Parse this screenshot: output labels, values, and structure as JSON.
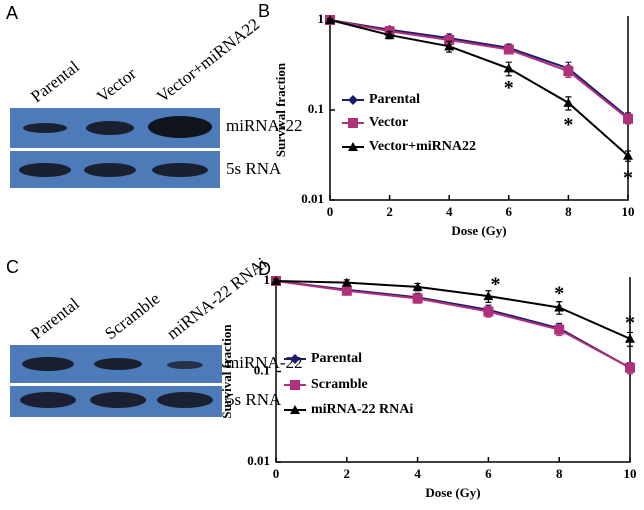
{
  "panels": {
    "A": {
      "letter": "A",
      "lanes": [
        "Parental",
        "Vector",
        "Vector+miRNA22"
      ],
      "bands": [
        "miRNA-22",
        "5s RNA"
      ]
    },
    "C": {
      "letter": "C",
      "lanes": [
        "Parental",
        "Scramble",
        "miRNA-22 RNAi"
      ],
      "bands": [
        "miRNA-22",
        "5s RNA"
      ]
    }
  },
  "chart_data": [
    {
      "type": "line",
      "panel": "B",
      "x_label": "Dose (Gy)",
      "y_label": "Survival fraction",
      "yscale": "log",
      "x": [
        0,
        2,
        4,
        6,
        8,
        10
      ],
      "xlim": [
        0,
        10
      ],
      "xticks": [
        0,
        2,
        4,
        6,
        8,
        10
      ],
      "ylim": [
        0.01,
        1
      ],
      "yticks": [
        1,
        0.1,
        0.01
      ],
      "series": [
        {
          "name": "Parental",
          "color": "#1c1c6e",
          "marker": "diamond",
          "values": [
            1,
            0.78,
            0.63,
            0.49,
            0.29,
            0.083
          ],
          "errors": [
            0.03,
            0.06,
            0.07,
            0.05,
            0.05,
            0.01
          ]
        },
        {
          "name": "Vector",
          "color": "#b0307a",
          "marker": "square",
          "values": [
            1,
            0.75,
            0.6,
            0.47,
            0.27,
            0.08
          ],
          "errors": [
            0.03,
            0.05,
            0.06,
            0.05,
            0.04,
            0.01
          ]
        },
        {
          "name": "Vector+miRNA22",
          "color": "#000000",
          "marker": "triangle",
          "values": [
            1,
            0.68,
            0.51,
            0.29,
            0.12,
            0.031
          ],
          "errors": [
            0.03,
            0.06,
            0.07,
            0.05,
            0.02,
            0.004
          ]
        }
      ],
      "annotations": [
        {
          "text": "*",
          "x": 6,
          "y": 0.17
        },
        {
          "text": "*",
          "x": 8,
          "y": 0.066
        },
        {
          "text": "*",
          "x": 10,
          "y": 0.017
        }
      ]
    },
    {
      "type": "line",
      "panel": "D",
      "x_label": "Dose (Gy)",
      "y_label": "Survival fraction",
      "yscale": "log",
      "x": [
        0,
        2,
        4,
        6,
        8,
        10
      ],
      "xlim": [
        0,
        10
      ],
      "xticks": [
        0,
        2,
        4,
        6,
        8,
        10
      ],
      "ylim": [
        0.01,
        1
      ],
      "yticks": [
        1,
        0.1,
        0.01
      ],
      "series": [
        {
          "name": "Parental",
          "color": "#1c1c6e",
          "marker": "diamond",
          "values": [
            1,
            0.8,
            0.66,
            0.48,
            0.3,
            0.11
          ],
          "errors": [
            0.03,
            0.06,
            0.07,
            0.06,
            0.04,
            0.015
          ]
        },
        {
          "name": "Scramble",
          "color": "#b0307a",
          "marker": "square",
          "values": [
            1,
            0.78,
            0.64,
            0.46,
            0.29,
            0.11
          ],
          "errors": [
            0.03,
            0.06,
            0.07,
            0.06,
            0.04,
            0.015
          ]
        },
        {
          "name": "miRNA-22 RNAi",
          "color": "#000000",
          "marker": "triangle",
          "values": [
            1,
            0.96,
            0.86,
            0.68,
            0.51,
            0.23
          ],
          "errors": [
            0.05,
            0.07,
            0.08,
            0.1,
            0.08,
            0.04
          ]
        }
      ],
      "annotations": [
        {
          "text": "*",
          "x": 6.2,
          "y": 0.88
        },
        {
          "text": "*",
          "x": 8,
          "y": 0.7
        },
        {
          "text": "*",
          "x": 10,
          "y": 0.33
        }
      ]
    }
  ]
}
